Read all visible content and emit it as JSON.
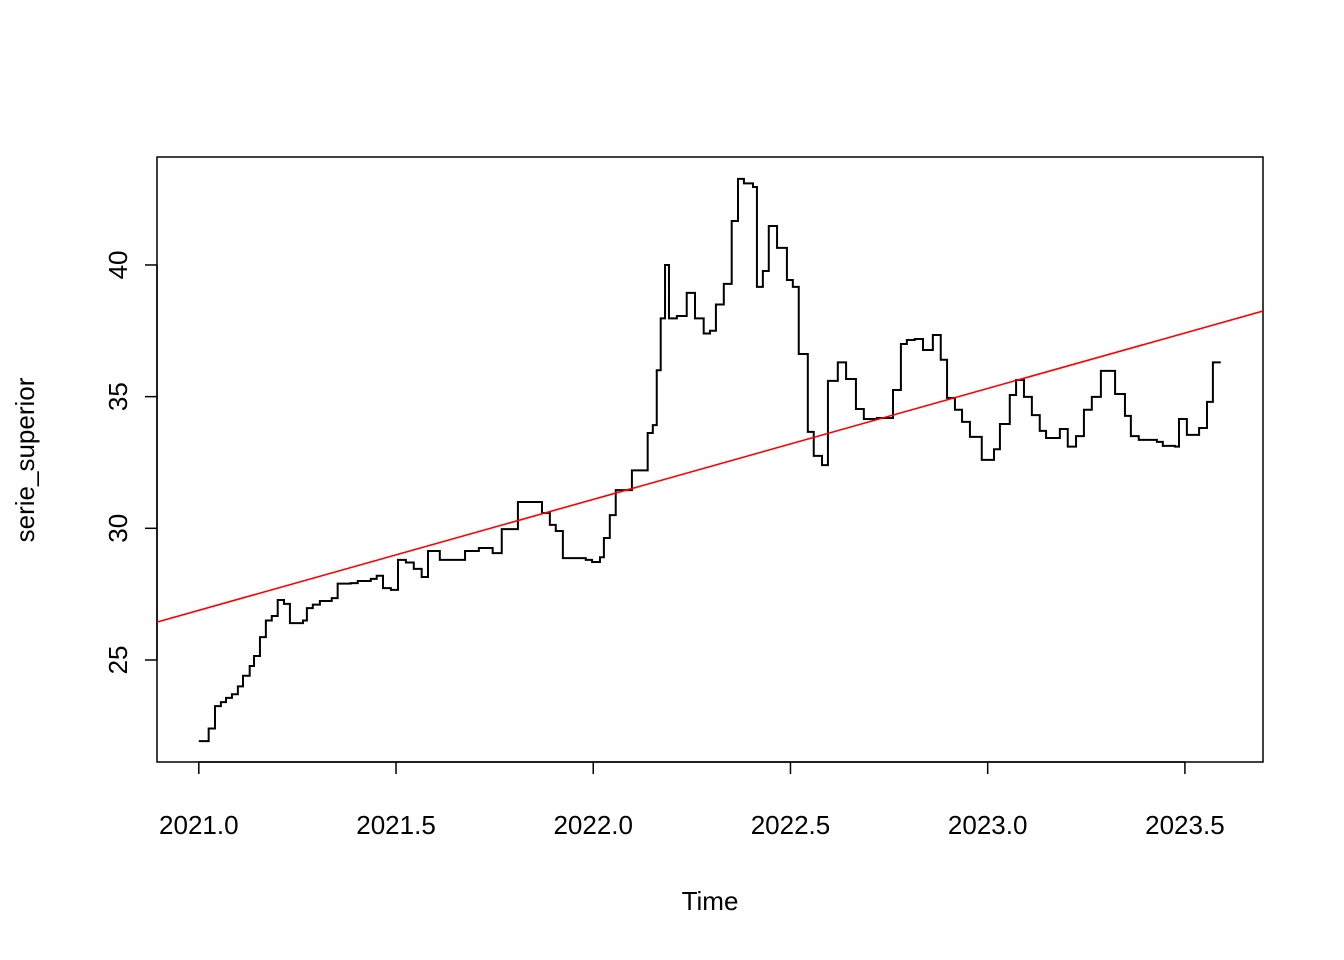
{
  "chart_data": {
    "type": "line",
    "xlabel": "Time",
    "ylabel": "serie_superior",
    "xlim": [
      2020.894,
      2023.698
    ],
    "ylim": [
      21.126,
      44.1
    ],
    "xticks": [
      {
        "value": 2021.0,
        "label": "2021.0"
      },
      {
        "value": 2021.5,
        "label": "2021.5"
      },
      {
        "value": 2022.0,
        "label": "2022.0"
      },
      {
        "value": 2022.5,
        "label": "2022.5"
      },
      {
        "value": 2023.0,
        "label": "2023.0"
      },
      {
        "value": 2023.5,
        "label": "2023.5"
      }
    ],
    "yticks": [
      25,
      30,
      35,
      40
    ],
    "series": [
      {
        "color": "#000000",
        "step": true,
        "x": [
          2021.0,
          2021.015,
          2021.025,
          2021.041,
          2021.056,
          2021.069,
          2021.084,
          2021.099,
          2021.112,
          2021.129,
          2021.14,
          2021.155,
          2021.17,
          2021.185,
          2021.2,
          2021.216,
          2021.231,
          2021.264,
          2021.274,
          2021.289,
          2021.307,
          2021.337,
          2021.352,
          2021.385,
          2021.403,
          2021.436,
          2021.451,
          2021.467,
          2021.487,
          2021.505,
          2021.525,
          2021.545,
          2021.565,
          2021.581,
          2021.611,
          2021.675,
          2021.71,
          2021.745,
          2021.768,
          2021.809,
          2021.87,
          2021.89,
          2021.905,
          2021.923,
          2021.981,
          2021.997,
          2022.017,
          2022.027,
          2022.042,
          2022.057,
          2022.098,
          2022.138,
          2022.151,
          2022.161,
          2022.171,
          2022.182,
          2022.192,
          2022.212,
          2022.237,
          2022.258,
          2022.28,
          2022.296,
          2022.311,
          2022.331,
          2022.351,
          2022.367,
          2022.382,
          2022.405,
          2022.415,
          2022.43,
          2022.445,
          2022.466,
          2022.491,
          2022.506,
          2022.521,
          2022.544,
          2022.559,
          2022.58,
          2022.595,
          2022.62,
          2022.641,
          2022.666,
          2022.686,
          2022.719,
          2022.76,
          2022.78,
          2022.795,
          2022.815,
          2022.836,
          2022.861,
          2022.881,
          2022.897,
          2022.917,
          2022.935,
          2022.955,
          2022.985,
          2023.016,
          2023.031,
          2023.056,
          2023.072,
          2023.092,
          2023.112,
          2023.132,
          2023.148,
          2023.183,
          2023.203,
          2023.224,
          2023.244,
          2023.264,
          2023.287,
          2023.323,
          2023.348,
          2023.363,
          2023.383,
          2023.429,
          2023.444,
          2023.475,
          2023.485,
          2023.505,
          2023.536,
          2023.556,
          2023.571,
          2023.591
        ],
        "values": [
          21.92,
          21.92,
          22.4,
          23.25,
          23.4,
          23.56,
          23.7,
          24.0,
          24.4,
          24.77,
          25.15,
          25.87,
          26.5,
          26.67,
          27.28,
          27.13,
          26.4,
          26.5,
          26.97,
          27.1,
          27.24,
          27.35,
          27.9,
          27.92,
          28.0,
          28.08,
          28.2,
          27.73,
          27.66,
          28.8,
          28.7,
          28.46,
          28.15,
          29.14,
          28.8,
          29.14,
          29.25,
          29.06,
          29.97,
          31.0,
          30.58,
          30.13,
          29.9,
          28.87,
          28.8,
          28.72,
          28.9,
          29.63,
          30.5,
          31.45,
          32.2,
          33.62,
          33.92,
          36.0,
          37.97,
          40.0,
          37.97,
          38.06,
          38.94,
          37.97,
          37.4,
          37.5,
          38.5,
          39.28,
          41.67,
          43.27,
          43.1,
          42.96,
          39.17,
          39.77,
          41.48,
          40.65,
          39.43,
          39.17,
          36.62,
          33.66,
          32.75,
          32.4,
          35.6,
          36.3,
          35.67,
          34.53,
          34.15,
          34.19,
          35.25,
          37.0,
          37.15,
          37.19,
          36.77,
          37.34,
          36.4,
          34.95,
          34.5,
          34.04,
          33.47,
          32.6,
          33.0,
          33.96,
          35.06,
          35.63,
          34.99,
          34.3,
          33.7,
          33.43,
          33.77,
          33.1,
          33.5,
          34.5,
          34.99,
          35.98,
          35.1,
          34.27,
          33.5,
          33.36,
          33.28,
          33.13,
          33.1,
          34.15,
          33.55,
          33.81,
          34.8,
          36.3,
          36.3
        ]
      },
      {
        "color": "#ff0000",
        "step": false,
        "x": [
          2020.894,
          2023.698
        ],
        "values": [
          26.44,
          38.25
        ]
      }
    ]
  }
}
